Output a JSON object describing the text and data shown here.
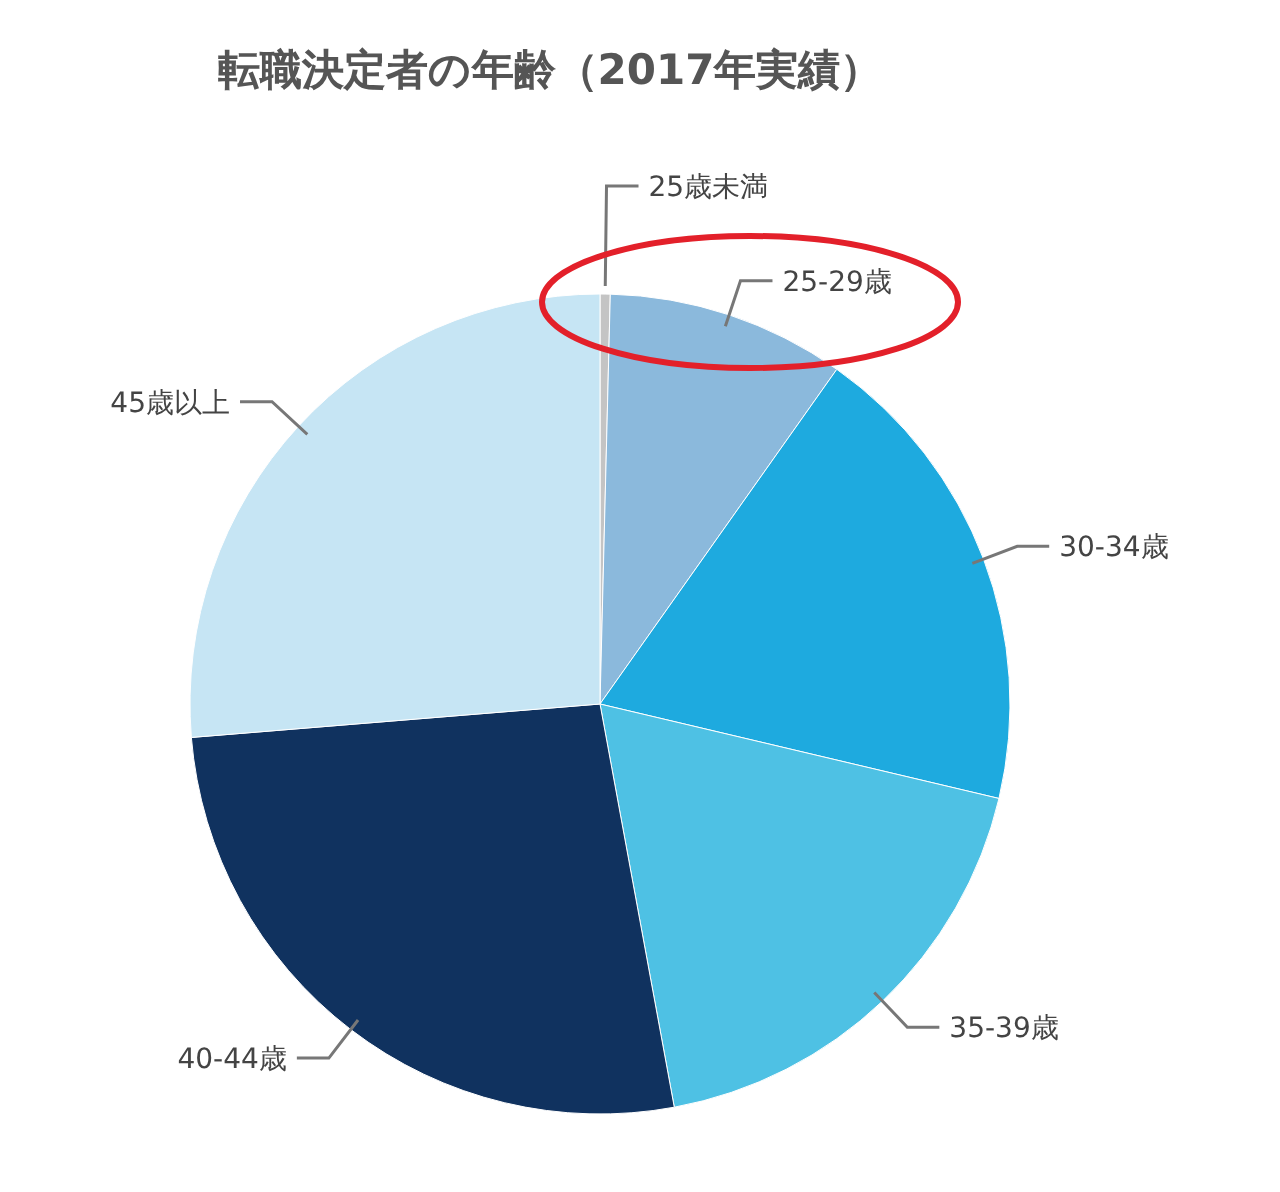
{
  "chart_data": {
    "type": "pie",
    "title": "転職決定者の年齢（2017年実績）",
    "categories": [
      "25歳未満",
      "25-29歳",
      "30-34歳",
      "35-39歳",
      "40-44歳",
      "45歳以上"
    ],
    "values": [
      0.4,
      9.4,
      18.9,
      18.4,
      26.6,
      26.3
    ],
    "colors": [
      "#c4c4c4",
      "#8bb9dc",
      "#1eaadf",
      "#4ec1e4",
      "#10325f",
      "#c6e5f4"
    ]
  }
}
